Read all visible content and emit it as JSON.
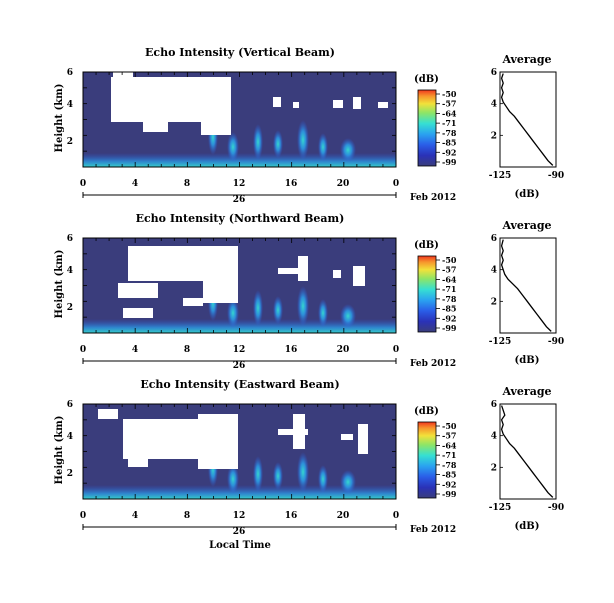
{
  "chart_data": [
    {
      "type": "heatmap",
      "title": "Echo Intensity (Vertical Beam)",
      "ylabel": "Height (km)",
      "y_ticks": [
        "2",
        "4",
        "6"
      ],
      "x_ticks": [
        "0",
        "4",
        "8",
        "12",
        "16",
        "20",
        "0"
      ],
      "x_range": [
        0,
        24
      ],
      "y_range": [
        0,
        6
      ],
      "date_label": "26",
      "month_label": "Feb 2012",
      "colorbar": {
        "unit": "(dB)",
        "ticks": [
          "-50",
          "-57",
          "-64",
          "-71",
          "-78",
          "-85",
          "-92",
          "-99"
        ]
      },
      "average": {
        "title": "Average",
        "xlabel": "(dB)",
        "x_ticks": [
          "-125",
          "-90"
        ],
        "y_ticks": [
          "2",
          "4",
          "6"
        ],
        "xlim": [
          -125,
          -90
        ],
        "ylim": [
          0,
          6
        ],
        "profile": [
          [
            -92,
            0.1
          ],
          [
            -95,
            0.4
          ],
          [
            -98,
            0.8
          ],
          [
            -101,
            1.2
          ],
          [
            -104,
            1.6
          ],
          [
            -107,
            2.0
          ],
          [
            -110,
            2.4
          ],
          [
            -113,
            2.8
          ],
          [
            -116,
            3.2
          ],
          [
            -119,
            3.5
          ],
          [
            -121,
            3.8
          ],
          [
            -123,
            4.1
          ],
          [
            -124,
            4.4
          ],
          [
            -123,
            4.7
          ],
          [
            -124,
            5.0
          ],
          [
            -123,
            5.3
          ],
          [
            -124,
            5.6
          ],
          [
            -123,
            5.9
          ]
        ]
      }
    },
    {
      "type": "heatmap",
      "title": "Echo Intensity (Northward Beam)",
      "ylabel": "Height (km)",
      "y_ticks": [
        "2",
        "4",
        "6"
      ],
      "x_ticks": [
        "0",
        "4",
        "8",
        "12",
        "16",
        "20",
        "0"
      ],
      "x_range": [
        0,
        24
      ],
      "y_range": [
        0,
        6
      ],
      "date_label": "26",
      "month_label": "Feb 2012",
      "colorbar": {
        "unit": "(dB)",
        "ticks": [
          "-50",
          "-57",
          "-64",
          "-71",
          "-78",
          "-85",
          "-92",
          "-99"
        ]
      },
      "average": {
        "title": "Average",
        "xlabel": "(dB)",
        "x_ticks": [
          "-125",
          "-90"
        ],
        "y_ticks": [
          "2",
          "4",
          "6"
        ],
        "xlim": [
          -125,
          -90
        ],
        "ylim": [
          0,
          6
        ],
        "profile": [
          [
            -93,
            0.1
          ],
          [
            -96,
            0.4
          ],
          [
            -99,
            0.8
          ],
          [
            -102,
            1.2
          ],
          [
            -105,
            1.6
          ],
          [
            -108,
            2.0
          ],
          [
            -111,
            2.4
          ],
          [
            -114,
            2.8
          ],
          [
            -117,
            3.1
          ],
          [
            -120,
            3.4
          ],
          [
            -122,
            3.7
          ],
          [
            -123,
            4.0
          ],
          [
            -124,
            4.3
          ],
          [
            -123,
            4.6
          ],
          [
            -124,
            4.9
          ],
          [
            -123,
            5.2
          ],
          [
            -124,
            5.5
          ],
          [
            -123,
            5.9
          ]
        ]
      }
    },
    {
      "type": "heatmap",
      "title": "Echo Intensity (Eastward Beam)",
      "ylabel": "Height (km)",
      "y_ticks": [
        "2",
        "4",
        "6"
      ],
      "x_ticks": [
        "0",
        "4",
        "8",
        "12",
        "16",
        "20",
        "0"
      ],
      "x_range": [
        0,
        24
      ],
      "y_range": [
        0,
        6
      ],
      "date_label": "26",
      "month_label": "Feb 2012",
      "xlabel": "Local Time",
      "colorbar": {
        "unit": "(dB)",
        "ticks": [
          "-50",
          "-57",
          "-64",
          "-71",
          "-78",
          "-85",
          "-92",
          "-99"
        ]
      },
      "average": {
        "title": "Average",
        "xlabel": "(dB)",
        "x_ticks": [
          "-125",
          "-90"
        ],
        "y_ticks": [
          "2",
          "4",
          "6"
        ],
        "xlim": [
          -125,
          -90
        ],
        "ylim": [
          0,
          6
        ],
        "profile": [
          [
            -92,
            0.1
          ],
          [
            -95,
            0.4
          ],
          [
            -98,
            0.8
          ],
          [
            -101,
            1.2
          ],
          [
            -104,
            1.6
          ],
          [
            -107,
            2.0
          ],
          [
            -110,
            2.4
          ],
          [
            -113,
            2.8
          ],
          [
            -116,
            3.2
          ],
          [
            -119,
            3.5
          ],
          [
            -121,
            3.8
          ],
          [
            -123,
            4.1
          ],
          [
            -124,
            4.4
          ],
          [
            -123,
            4.7
          ],
          [
            -124,
            5.0
          ],
          [
            -122,
            5.3
          ],
          [
            -123,
            5.6
          ],
          [
            -124,
            5.9
          ]
        ]
      }
    }
  ],
  "colors": {
    "background": "#3a3d7c",
    "scale": [
      "#f0371f",
      "#f7962c",
      "#f2e13a",
      "#8ee566",
      "#36e0d2",
      "#2aa3f0",
      "#2a5ee8",
      "#2a32b8",
      "#3a3d7c"
    ]
  }
}
